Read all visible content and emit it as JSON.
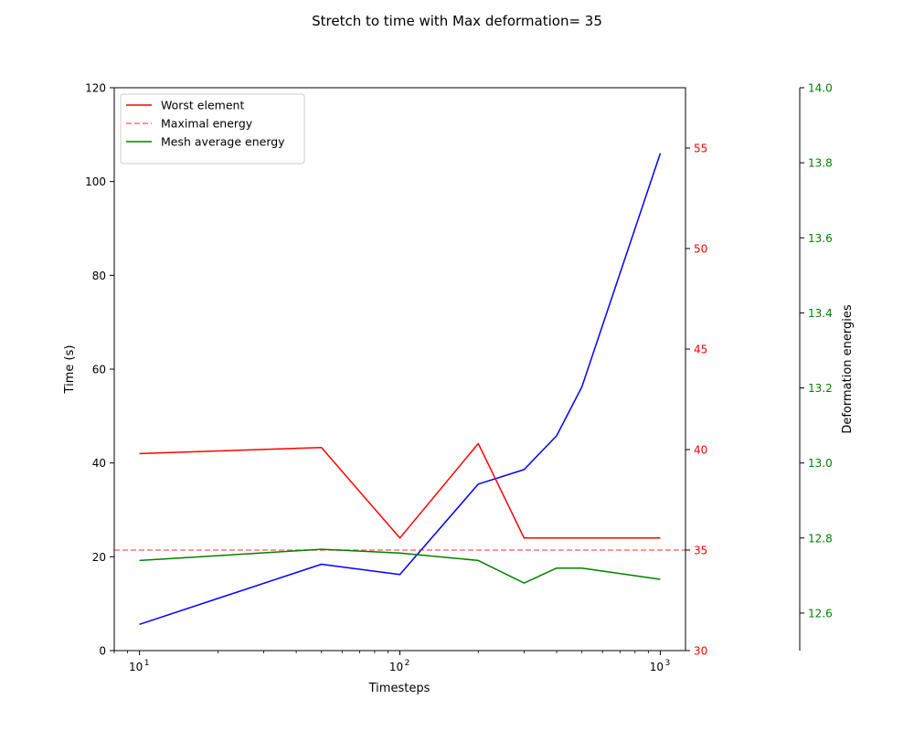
{
  "chart_data": {
    "type": "line",
    "title": "Stretch to time with Max deformation= 35",
    "xlabel": "Timesteps",
    "xscale": "log",
    "xlim": [
      8,
      1250
    ],
    "x_ticks": [
      10,
      100,
      1000
    ],
    "x_tick_labels": [
      {
        "base": "10",
        "exp": "1"
      },
      {
        "base": "10",
        "exp": "2"
      },
      {
        "base": "10",
        "exp": "3"
      }
    ],
    "grid": false,
    "legend_placement": "top-left",
    "axes": {
      "time": {
        "label": "Time (s)",
        "ylim": [
          0,
          120
        ],
        "ticks": [
          0,
          20,
          40,
          60,
          80,
          100,
          120
        ],
        "color": "#000000"
      },
      "worst": {
        "label": "",
        "ylim": [
          30,
          58
        ],
        "ticks": [
          30,
          35,
          40,
          45,
          50,
          55
        ],
        "color": "#ff0000"
      },
      "energies": {
        "label": "Deformation energies",
        "ylim": [
          12.5,
          14.0
        ],
        "ticks": [
          12.6,
          12.8,
          13.0,
          13.2,
          13.4,
          13.6,
          13.8,
          14.0
        ],
        "tick_labels": [
          "12.6",
          "12.8",
          "13.0",
          "13.2",
          "13.4",
          "13.6",
          "13.8",
          "14.0"
        ],
        "color": "#008000"
      }
    },
    "series": [
      {
        "axis": "time",
        "color": "#0000ff",
        "style": "solid",
        "x": [
          10,
          50,
          100,
          200,
          300,
          400,
          500,
          1000
        ],
        "values": [
          5.6,
          18.4,
          16.2,
          35.5,
          38.6,
          45.8,
          56.2,
          106
        ]
      },
      {
        "name": "Worst element",
        "axis": "worst",
        "color": "#ff0000",
        "style": "solid",
        "x": [
          10,
          50,
          100,
          200,
          300,
          400,
          500,
          1000
        ],
        "values": [
          39.8,
          40.1,
          35.6,
          40.3,
          35.6,
          35.6,
          35.6,
          35.6
        ]
      },
      {
        "name": "Maximal energy",
        "axis": "worst",
        "color": "#ff0000",
        "style": "dashed",
        "horizontal": true,
        "value": 35
      },
      {
        "name": "Mesh average energy",
        "axis": "energies",
        "color": "#008000",
        "style": "solid",
        "x": [
          10,
          50,
          100,
          200,
          300,
          400,
          500,
          1000
        ],
        "values": [
          12.74,
          12.77,
          12.76,
          12.74,
          12.68,
          12.72,
          12.72,
          12.69
        ]
      }
    ]
  }
}
